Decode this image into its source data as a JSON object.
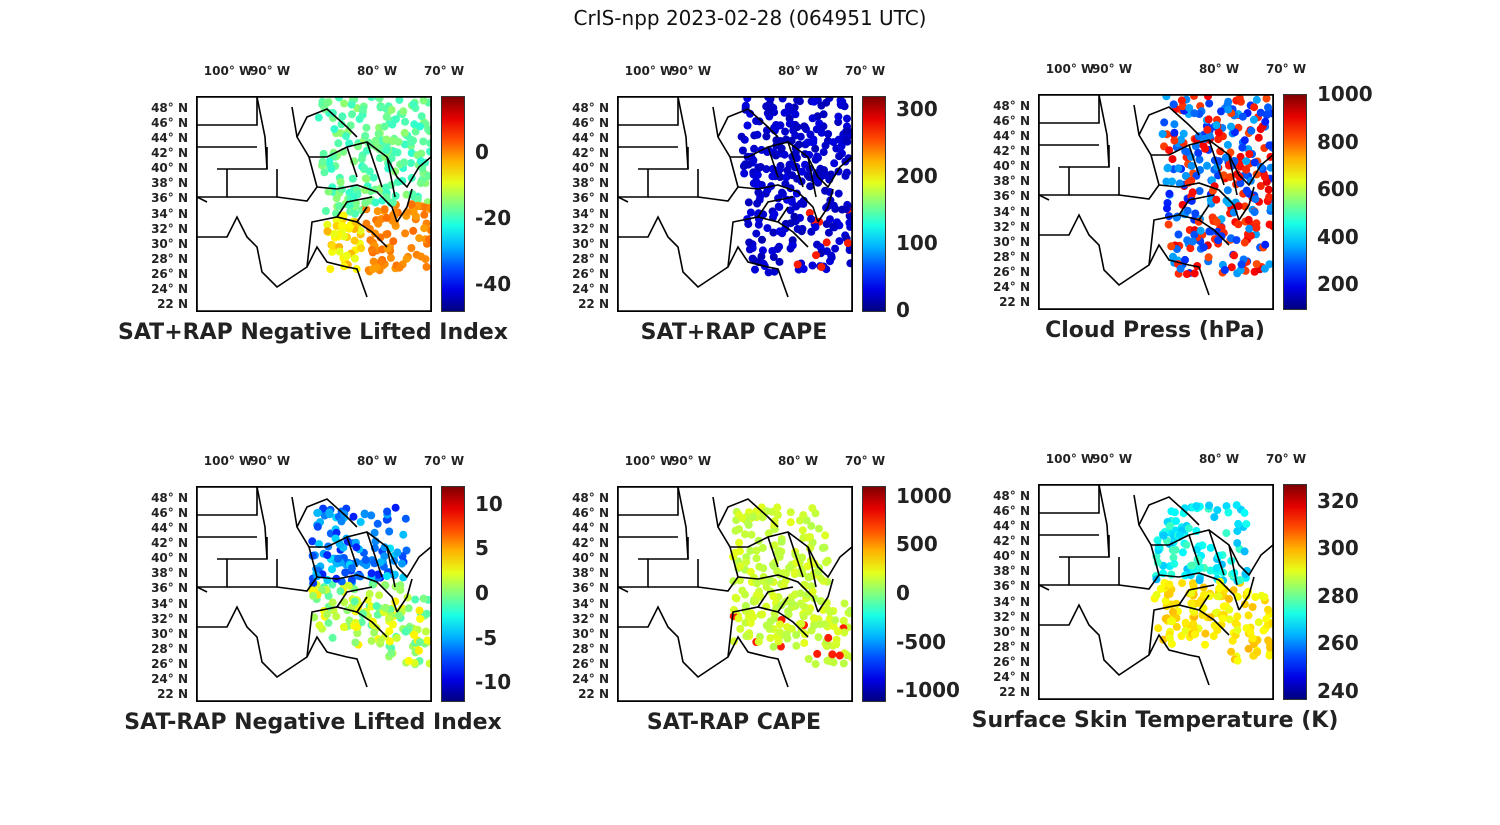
{
  "figure_title": "CrIS-npp 2023-02-28 (064951 UTC)",
  "lon_labels": [
    "100° W",
    "90° W",
    "80° W",
    "70° W"
  ],
  "lat_labels": [
    "48° N",
    "46° N",
    "44° N",
    "42° N",
    "40° N",
    "38° N",
    "36° N",
    "34° N",
    "32° N",
    "30° N",
    "28° N",
    "26° N",
    "24° N",
    "22 N"
  ],
  "panels": [
    {
      "title": "SAT+RAP Negative Lifted Index",
      "colorbar_ticks": [
        "0",
        "-20",
        "-40"
      ],
      "color_range": [
        -48,
        17
      ],
      "coverage": "swath-full",
      "colormap": "jet"
    },
    {
      "title": "SAT+RAP CAPE",
      "colorbar_ticks": [
        "300",
        "200",
        "100",
        "0"
      ],
      "color_range": [
        0,
        320
      ],
      "coverage": "swath-full-dark",
      "colormap": "jet"
    },
    {
      "title": "Cloud Press (hPa)",
      "colorbar_ticks": [
        "1000",
        "800",
        "600",
        "400",
        "200"
      ],
      "color_range": [
        100,
        1000
      ],
      "coverage": "patchy",
      "colormap": "jet"
    },
    {
      "title": "SAT-RAP Negative Lifted Index",
      "colorbar_ticks": [
        "10",
        "5",
        "0",
        "-5",
        "-10"
      ],
      "color_range": [
        -12,
        12
      ],
      "coverage": "clear-only",
      "colormap": "jet"
    },
    {
      "title": "SAT-RAP CAPE",
      "colorbar_ticks": [
        "1000",
        "500",
        "0",
        "-500",
        "-1000"
      ],
      "color_range": [
        -1100,
        1100
      ],
      "coverage": "clear-only",
      "colormap": "jet"
    },
    {
      "title": "Surface Skin Temperature (K)",
      "colorbar_ticks": [
        "320",
        "300",
        "280",
        "260",
        "240"
      ],
      "color_range": [
        237,
        327
      ],
      "coverage": "clear-only",
      "colormap": "jet"
    }
  ]
}
